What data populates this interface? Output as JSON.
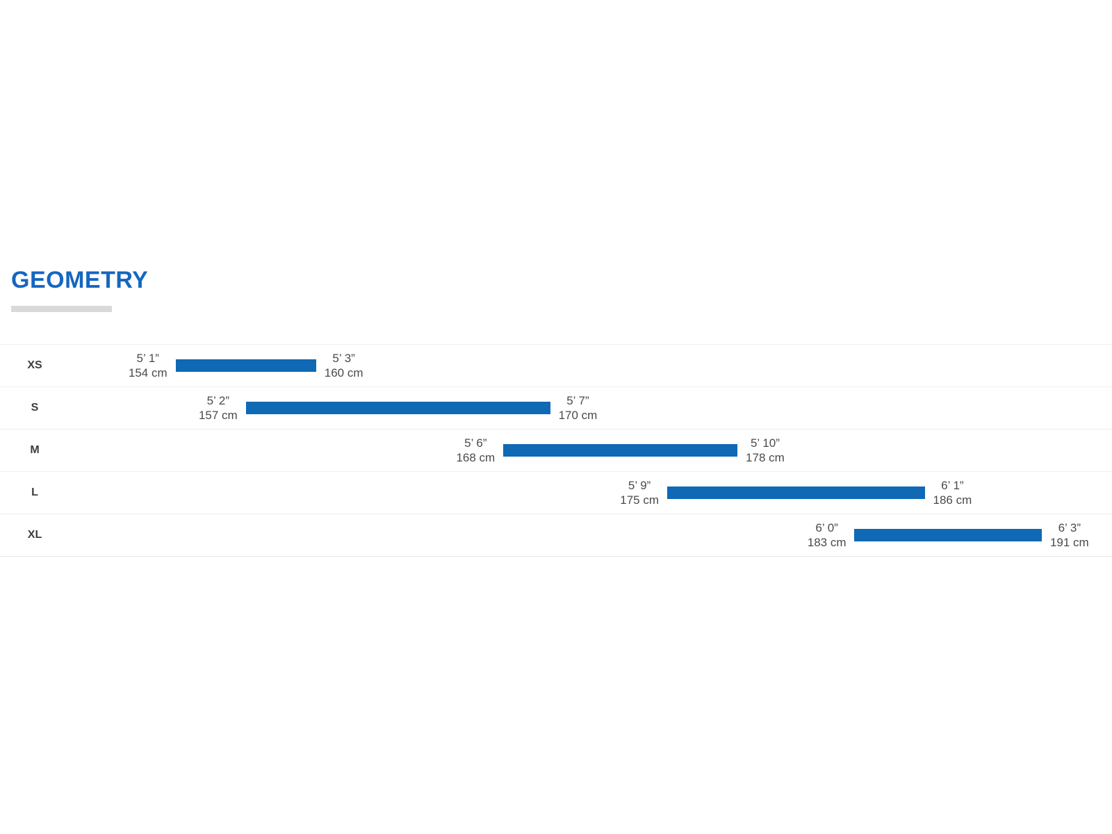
{
  "header": {
    "title": "GEOMETRY",
    "title_color": "#1566c0",
    "underline_color": "#d9d9d9"
  },
  "chart_data": {
    "type": "bar",
    "subtype": "horizontal-range-bars",
    "title": "GEOMETRY",
    "orientation": "horizontal",
    "categories": [
      "XS",
      "S",
      "M",
      "L",
      "XL"
    ],
    "rows": [
      {
        "size": "XS",
        "min_ftin": "5’ 1”",
        "min_cm_label": "154 cm",
        "min_cm": 154,
        "max_ftin": "5’ 3”",
        "max_cm_label": "160 cm",
        "max_cm": 160
      },
      {
        "size": "S",
        "min_ftin": "5’ 2”",
        "min_cm_label": "157 cm",
        "min_cm": 157,
        "max_ftin": "5’ 7”",
        "max_cm_label": "170 cm",
        "max_cm": 170
      },
      {
        "size": "M",
        "min_ftin": "5’ 6”",
        "min_cm_label": "168 cm",
        "min_cm": 168,
        "max_ftin": "5’ 10”",
        "max_cm_label": "178 cm",
        "max_cm": 178
      },
      {
        "size": "L",
        "min_ftin": "5’ 9”",
        "min_cm_label": "175 cm",
        "min_cm": 175,
        "max_ftin": "6’ 1”",
        "max_cm_label": "186 cm",
        "max_cm": 186
      },
      {
        "size": "XL",
        "min_ftin": "6’ 0”",
        "min_cm_label": "183 cm",
        "min_cm": 183,
        "max_ftin": "6’ 3”",
        "max_cm_label": "191 cm",
        "max_cm": 191
      }
    ],
    "x_axis": {
      "unit": "rider height (cm)",
      "domain": [
        146.5,
        194
      ],
      "ticks_visible": false
    },
    "grid": {
      "row_separators": true
    },
    "legend": "none",
    "colors": {
      "bar": "#0f69b4"
    }
  }
}
